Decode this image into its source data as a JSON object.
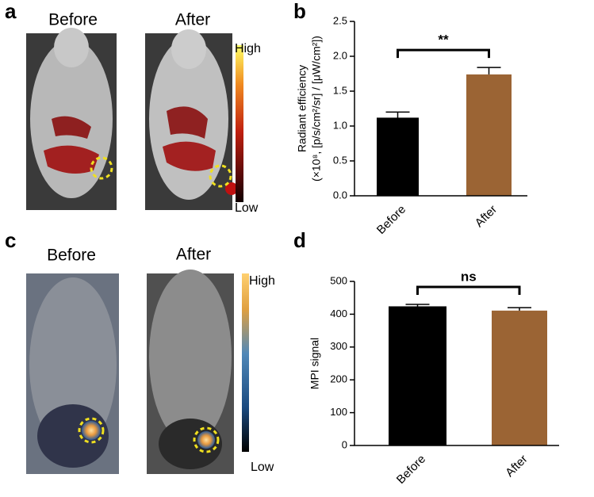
{
  "panels": {
    "a": {
      "label": "a",
      "titles": [
        "Before",
        "After"
      ],
      "scale": [
        "High",
        "Low"
      ]
    },
    "c": {
      "label": "c",
      "titles": [
        "Before",
        "After"
      ],
      "scale": [
        "High",
        "Low"
      ]
    }
  },
  "chart_data": [
    {
      "type": "bar",
      "label": "b",
      "y_label": [
        "Radiant efficiency",
        "(×10⁸, [p/s/cm²/sr] / [μW/cm²])"
      ],
      "categories": [
        "Before",
        "After"
      ],
      "values": [
        1.12,
        1.74
      ],
      "errors": [
        0.08,
        0.1
      ],
      "colors": [
        "#000000",
        "#9b6434"
      ],
      "annotation": "**",
      "ylim": [
        0,
        2.5
      ],
      "yticks": [
        {
          "value": 0,
          "label": "0.0"
        },
        0.5,
        {
          "value": 1,
          "label": "1.0"
        },
        1.5,
        {
          "value": 2,
          "label": "2.0"
        },
        2.5
      ]
    },
    {
      "type": "bar",
      "label": "d",
      "y_label": [
        "MPI signal"
      ],
      "categories": [
        "Before",
        "After"
      ],
      "values": [
        424,
        411
      ],
      "errors": [
        6,
        9
      ],
      "colors": [
        "#000000",
        "#9b6434"
      ],
      "annotation": "ns",
      "ylim": [
        0,
        500
      ],
      "yticks": [
        0,
        100,
        200,
        300,
        400,
        500
      ]
    }
  ]
}
